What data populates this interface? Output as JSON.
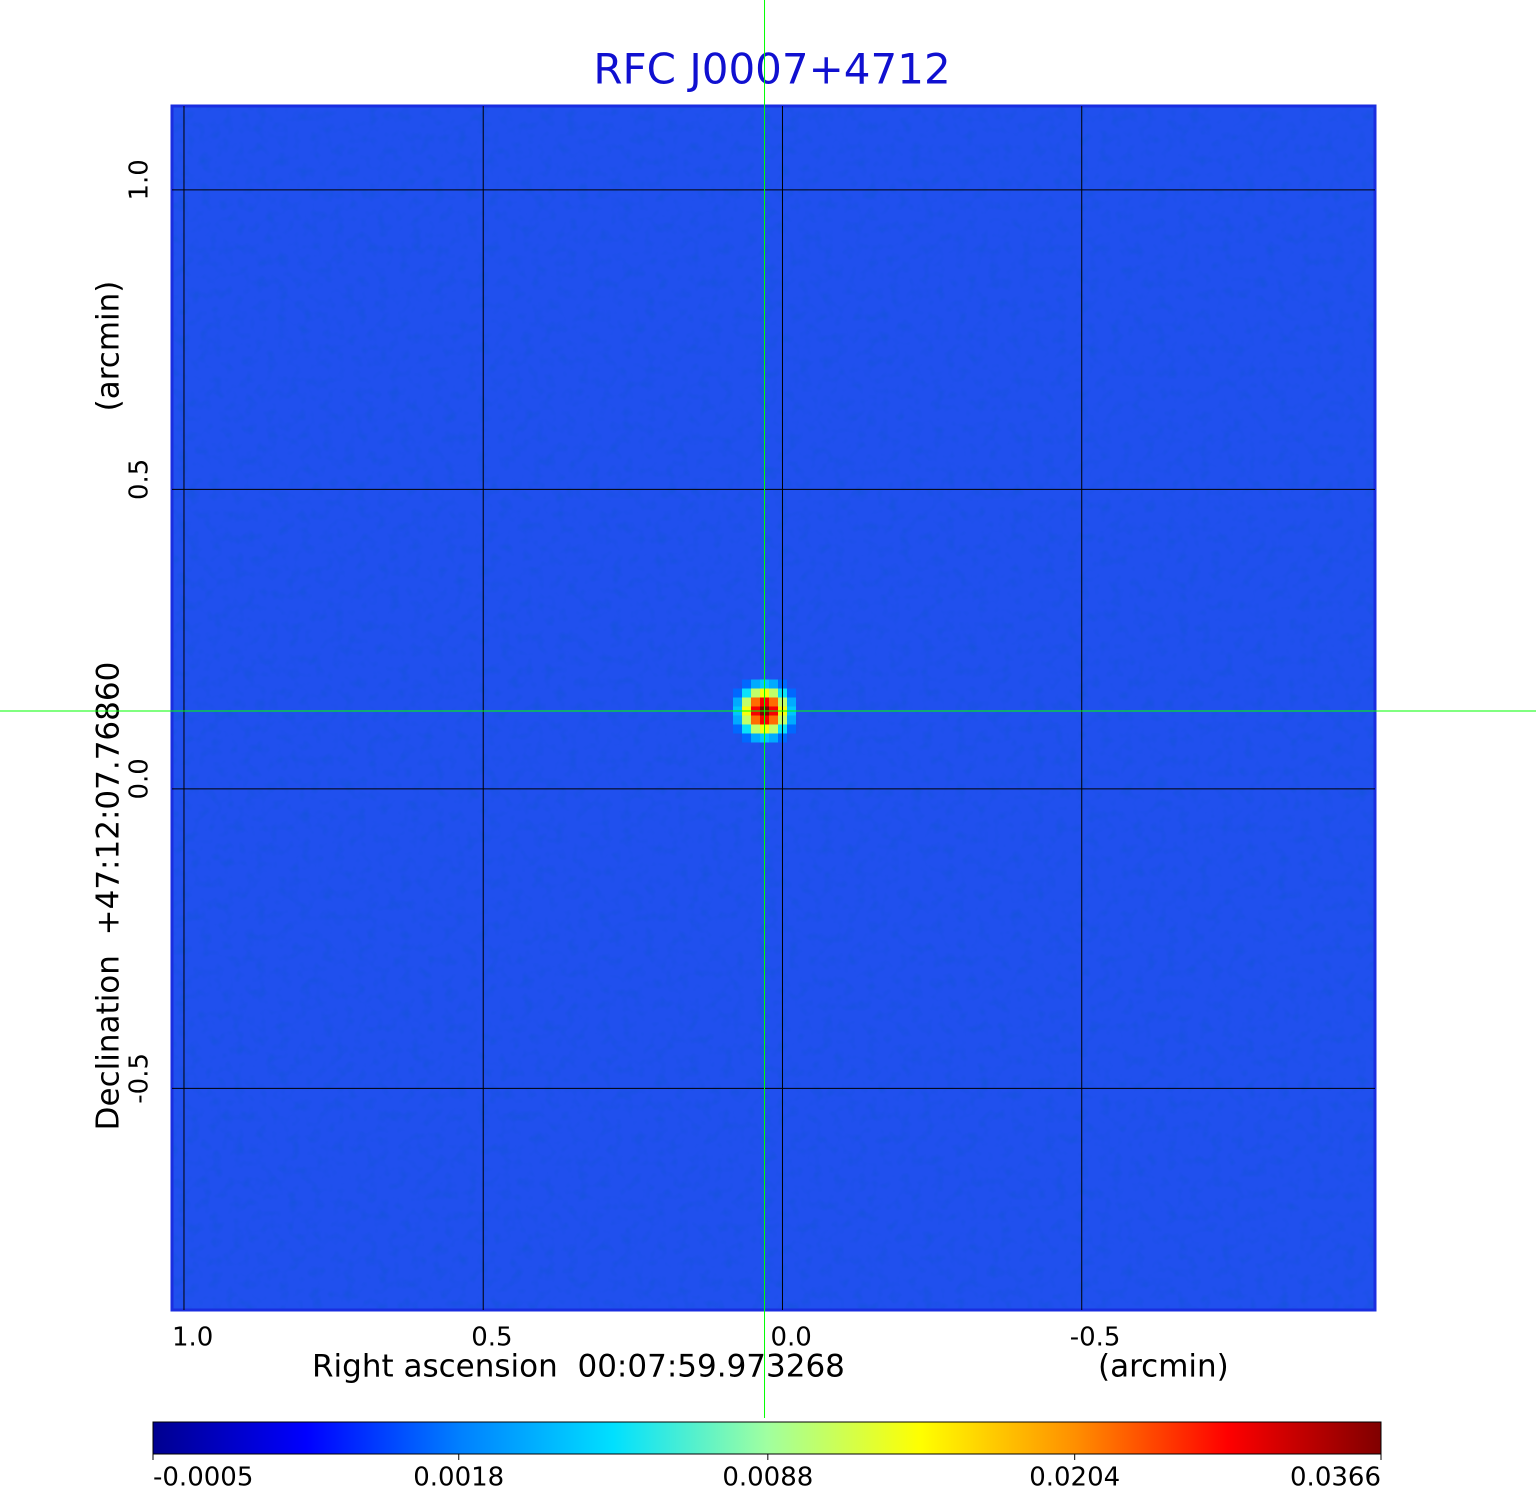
{
  "chart_data": {
    "type": "image",
    "title": "RFC J0007+4712",
    "xlabel": "Right ascension  00:07:59.973268",
    "xunit": "(arcmin)",
    "ylabel": "Declination  +47:12:07.76860",
    "yunit": "(arcmin)",
    "xlim": [
      1.02,
      -0.99
    ],
    "ylim": [
      -0.87,
      1.14
    ],
    "xticks": [
      {
        "value": 1,
        "label": "1.0"
      },
      {
        "value": 0.5,
        "label": "0.5"
      },
      {
        "value": 0,
        "label": "0.0"
      },
      {
        "value": -0.5,
        "label": "-0.5"
      }
    ],
    "yticks": [
      {
        "value": 1,
        "label": "1.0"
      },
      {
        "value": 0.5,
        "label": "0.5"
      },
      {
        "value": 0,
        "label": "0.0"
      },
      {
        "value": -0.5,
        "label": "-0.5"
      }
    ],
    "grid": true,
    "background_color": "#2050ee",
    "title_color": "#1010d0",
    "crosshair": {
      "x": 0.03,
      "y": 0.13,
      "color": "#00ff00"
    },
    "source": {
      "x": 0.03,
      "y": 0.13,
      "peak": 0.0366,
      "fwhm": 0.05
    },
    "colorbar": {
      "scale": "sqrt",
      "clim": [
        -0.0005,
        0.0366
      ],
      "ticks": [
        -0.0005,
        0.0018,
        0.0088,
        0.0204,
        0.0366
      ],
      "colormap": [
        "#00008f",
        "#0000ff",
        "#0080ff",
        "#00e0ff",
        "#a0ffa0",
        "#ffff00",
        "#ff9000",
        "#ff0000",
        "#800000"
      ]
    }
  }
}
